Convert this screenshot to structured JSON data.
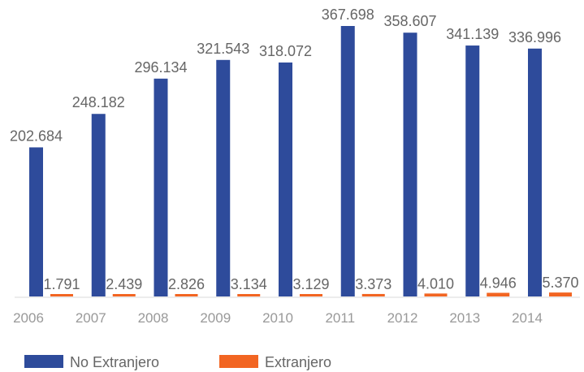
{
  "chart_data": {
    "type": "bar",
    "categories": [
      "2006",
      "2007",
      "2008",
      "2009",
      "2010",
      "2011",
      "2012",
      "2013",
      "2014"
    ],
    "series": [
      {
        "name": "No Extranjero",
        "color": "#2e4b9b",
        "values": [
          202684,
          248182,
          296134,
          321543,
          318072,
          367698,
          358607,
          341139,
          336996
        ],
        "labels": [
          "202.684",
          "248.182",
          "296.134",
          "321.543",
          "318.072",
          "367.698",
          "358.607",
          "341.139",
          "336.996"
        ]
      },
      {
        "name": "Extranjero",
        "color": "#f26522",
        "values": [
          1791,
          2439,
          2826,
          3134,
          3129,
          3373,
          4010,
          4946,
          5370
        ],
        "labels": [
          "1.791",
          "2.439",
          "2.826",
          "3.134",
          "3.129",
          "3.373",
          "4.010",
          "4.946",
          "5.370"
        ]
      }
    ],
    "ylim": [
      0,
      367698
    ],
    "grid": false,
    "legend_position": "bottom-left"
  }
}
